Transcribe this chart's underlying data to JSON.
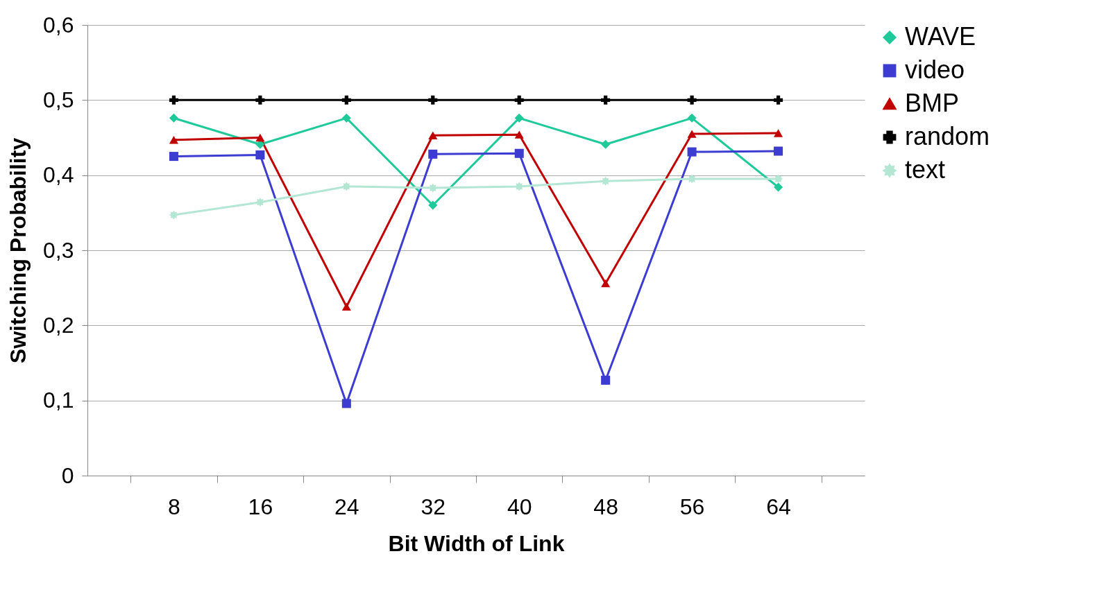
{
  "chart_data": {
    "type": "line",
    "xlabel": "Bit Width of Link",
    "ylabel": "Switching Probability",
    "categories": [
      "8",
      "16",
      "24",
      "32",
      "40",
      "48",
      "56",
      "64"
    ],
    "series": [
      {
        "name": "WAVE",
        "color": "#1fc99a",
        "marker": "diamond",
        "values": [
          0.476,
          0.441,
          0.476,
          0.36,
          0.476,
          0.441,
          0.476,
          0.384
        ]
      },
      {
        "name": "video",
        "color": "#3c3cd0",
        "marker": "square",
        "values": [
          0.425,
          0.427,
          0.096,
          0.428,
          0.429,
          0.127,
          0.431,
          0.432
        ]
      },
      {
        "name": "BMP",
        "color": "#c00000",
        "marker": "triangle",
        "values": [
          0.447,
          0.45,
          0.225,
          0.453,
          0.454,
          0.256,
          0.455,
          0.456
        ]
      },
      {
        "name": "random",
        "color": "#000000",
        "marker": "cross",
        "values": [
          0.5,
          0.5,
          0.5,
          0.5,
          0.5,
          0.5,
          0.5,
          0.5
        ]
      },
      {
        "name": "text",
        "color": "#b4e6d4",
        "marker": "star",
        "values": [
          0.347,
          0.364,
          0.385,
          0.383,
          0.385,
          0.392,
          0.395,
          0.395
        ]
      }
    ],
    "ylim": [
      0,
      0.6
    ],
    "yticks": [
      0,
      {
        "value": 0.1,
        "label": "0,1"
      },
      {
        "value": 0.2,
        "label": "0,2"
      },
      {
        "value": 0.3,
        "label": "0,3"
      },
      {
        "value": 0.4,
        "label": "0,4"
      },
      {
        "value": 0.5,
        "label": "0,5"
      },
      {
        "value": 0.6,
        "label": "0,6"
      }
    ],
    "grid": "y",
    "legend": "right"
  }
}
